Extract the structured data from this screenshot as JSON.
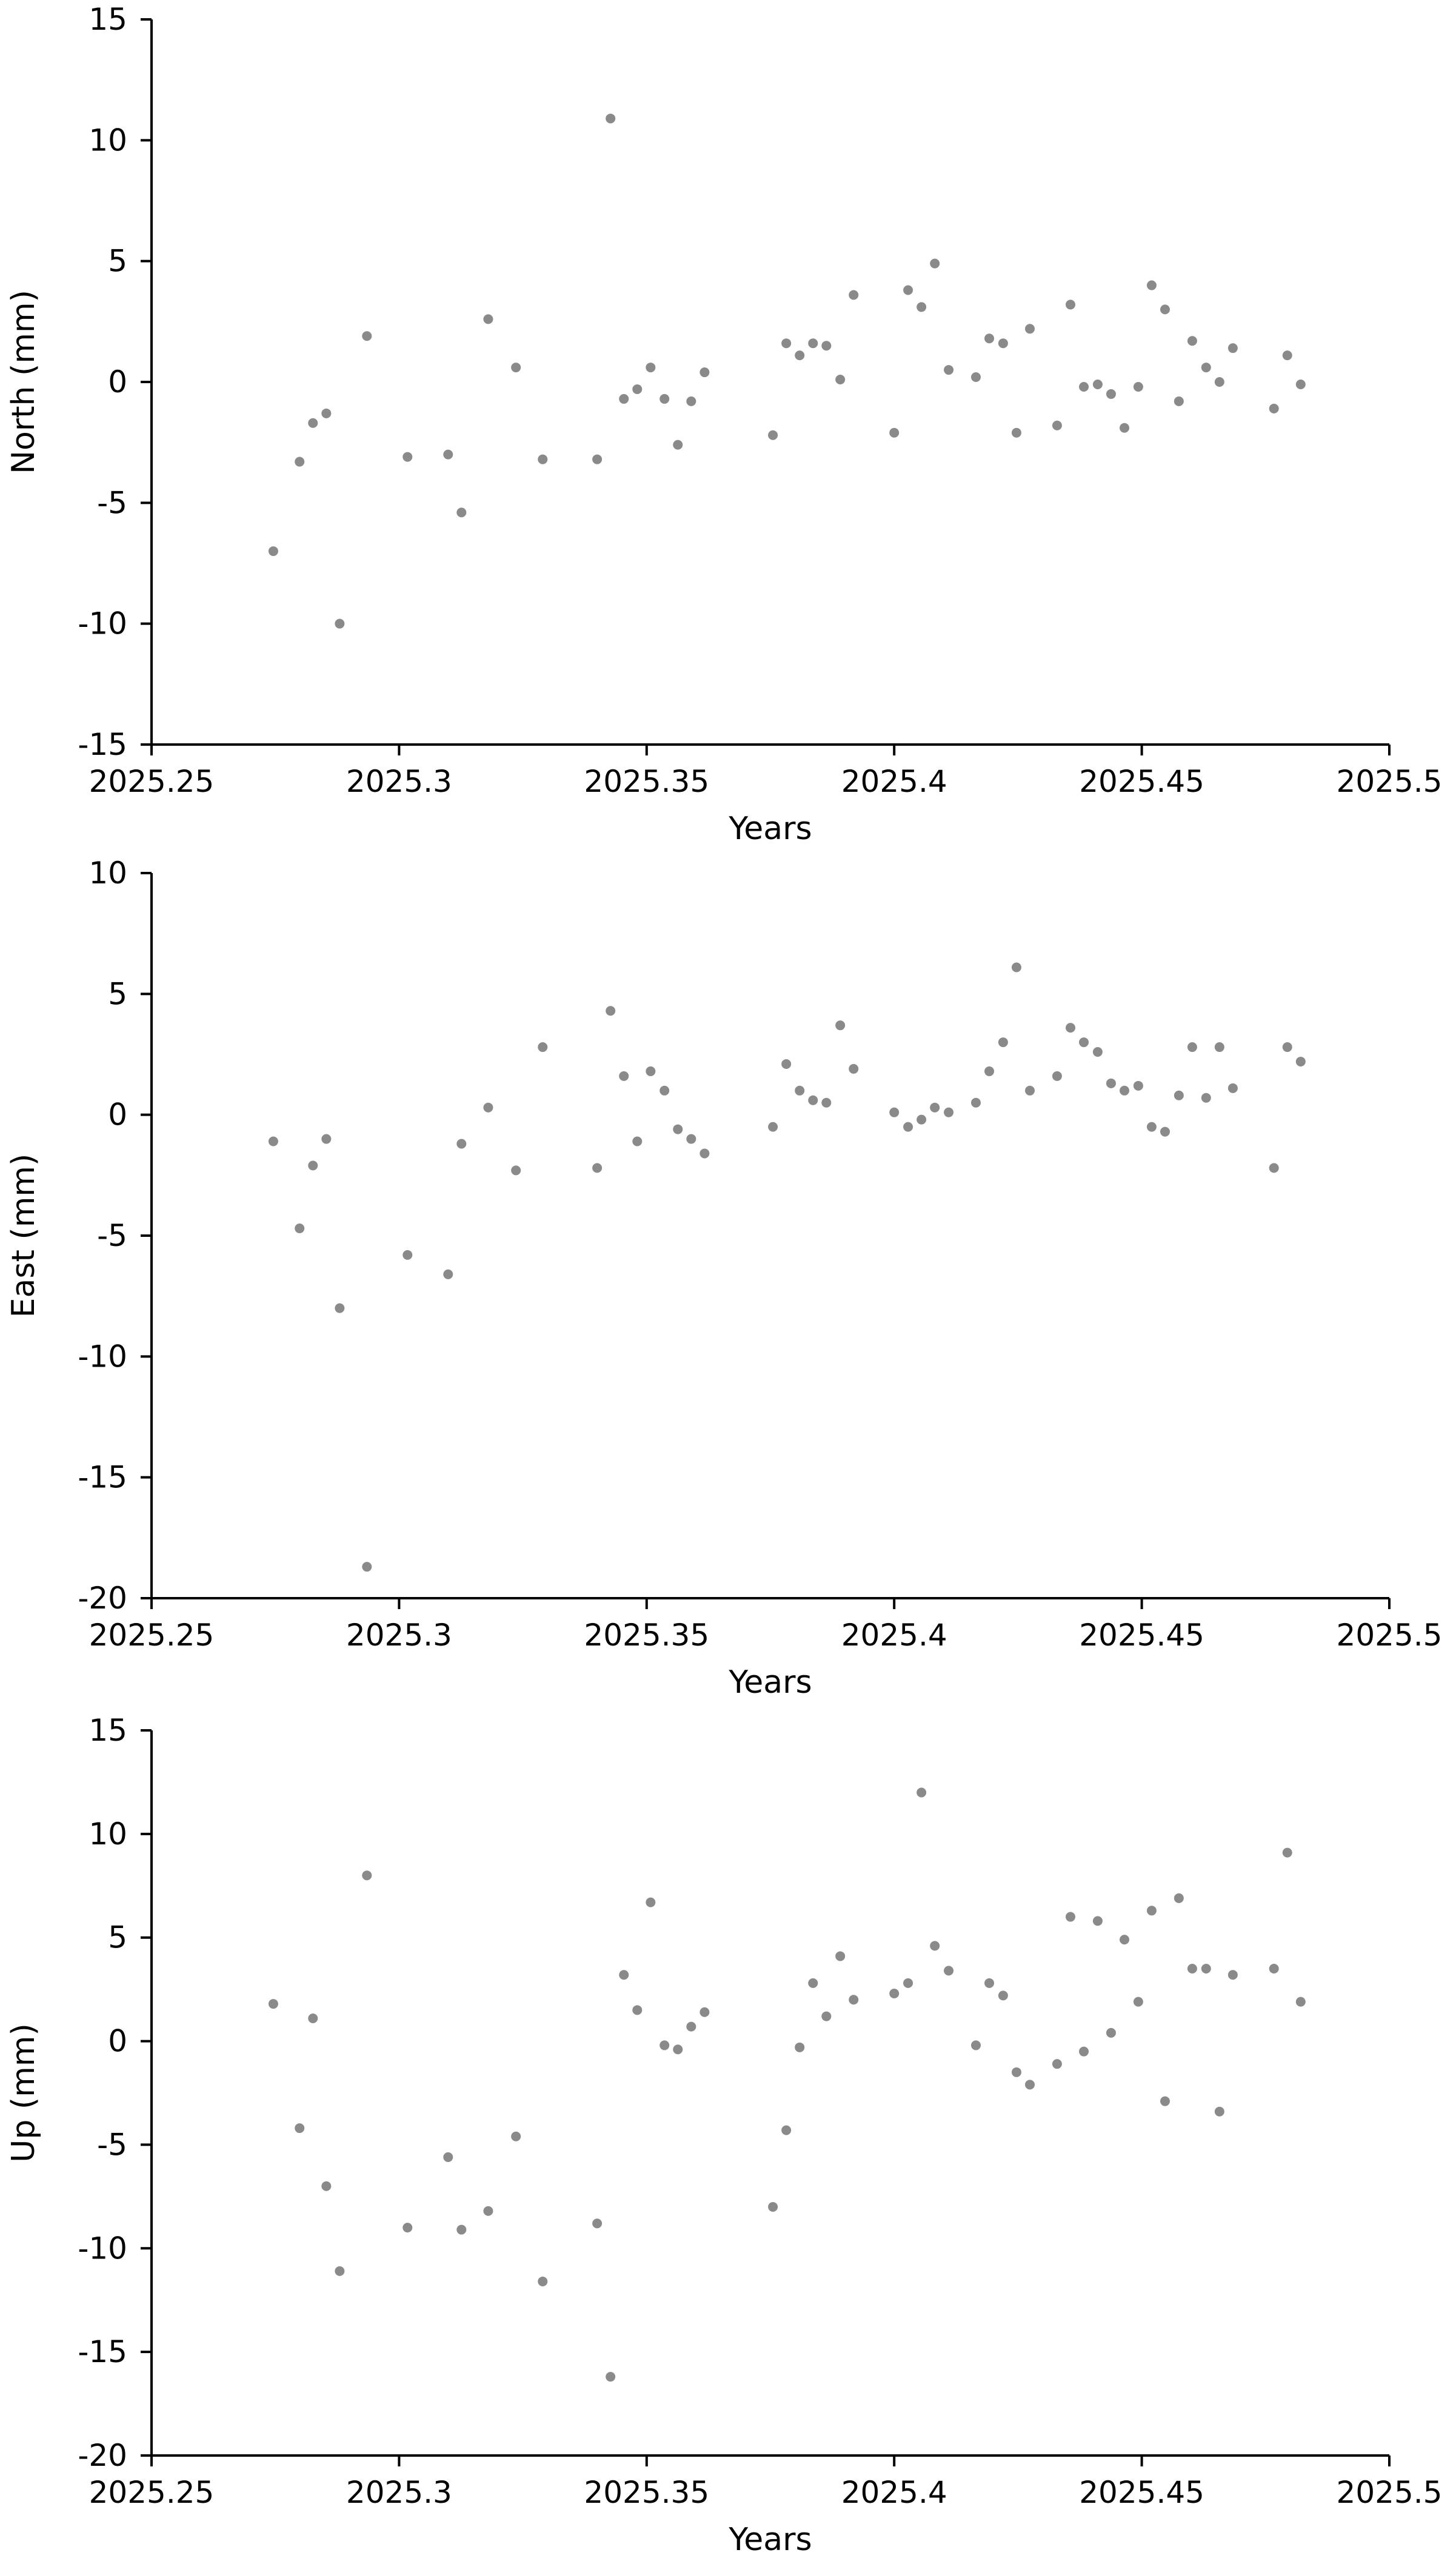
{
  "chart_data": [
    {
      "type": "scatter",
      "xlabel": "Years",
      "ylabel": "North (mm)",
      "xlim": [
        2025.25,
        2025.5
      ],
      "ylim": [
        -15,
        15
      ],
      "x_ticks": [
        "2025.25",
        "2025.3",
        "2025.35",
        "2025.4",
        "2025.45",
        "2025.5"
      ],
      "y_ticks": [
        "15",
        "10",
        "5",
        "0",
        "-5",
        "-10",
        "-15"
      ],
      "grid": false,
      "color": "#8a8a8a",
      "points": [
        [
          2025.2746,
          -7.0
        ],
        [
          2025.2799,
          -3.3
        ],
        [
          2025.2826,
          -1.7
        ],
        [
          2025.2853,
          -1.3
        ],
        [
          2025.288,
          -10.0
        ],
        [
          2025.2935,
          1.9
        ],
        [
          2025.3017,
          -3.1
        ],
        [
          2025.3099,
          -3.0
        ],
        [
          2025.3126,
          -5.4
        ],
        [
          2025.318,
          2.6
        ],
        [
          2025.3236,
          0.6
        ],
        [
          2025.329,
          -3.2
        ],
        [
          2025.34,
          -3.2
        ],
        [
          2025.3427,
          10.9
        ],
        [
          2025.3454,
          -0.7
        ],
        [
          2025.3481,
          -0.3
        ],
        [
          2025.3508,
          0.6
        ],
        [
          2025.3536,
          -0.7
        ],
        [
          2025.3563,
          -2.6
        ],
        [
          2025.359,
          -0.8
        ],
        [
          2025.3617,
          0.4
        ],
        [
          2025.3755,
          -2.2
        ],
        [
          2025.3782,
          1.6
        ],
        [
          2025.3809,
          1.1
        ],
        [
          2025.3836,
          1.6
        ],
        [
          2025.3863,
          1.5
        ],
        [
          2025.3891,
          0.1
        ],
        [
          2025.3918,
          3.6
        ],
        [
          2025.4,
          -2.1
        ],
        [
          2025.4028,
          3.8
        ],
        [
          2025.4055,
          3.1
        ],
        [
          2025.4082,
          4.9
        ],
        [
          2025.411,
          0.5
        ],
        [
          2025.4165,
          0.2
        ],
        [
          2025.4192,
          1.8
        ],
        [
          2025.422,
          1.6
        ],
        [
          2025.4247,
          -2.1
        ],
        [
          2025.4274,
          2.2
        ],
        [
          2025.4329,
          -1.8
        ],
        [
          2025.4356,
          3.2
        ],
        [
          2025.4383,
          -0.2
        ],
        [
          2025.4411,
          -0.1
        ],
        [
          2025.4438,
          -0.5
        ],
        [
          2025.4465,
          -1.9
        ],
        [
          2025.4493,
          -0.2
        ],
        [
          2025.452,
          4.0
        ],
        [
          2025.4547,
          3.0
        ],
        [
          2025.4575,
          -0.8
        ],
        [
          2025.4602,
          1.7
        ],
        [
          2025.463,
          0.6
        ],
        [
          2025.4657,
          0.0
        ],
        [
          2025.4684,
          1.4
        ],
        [
          2025.4767,
          -1.1
        ],
        [
          2025.4794,
          1.1
        ],
        [
          2025.4821,
          -0.1
        ]
      ]
    },
    {
      "type": "scatter",
      "xlabel": "Years",
      "ylabel": "East (mm)",
      "xlim": [
        2025.25,
        2025.5
      ],
      "ylim": [
        -20,
        10
      ],
      "x_ticks": [
        "2025.25",
        "2025.3",
        "2025.35",
        "2025.4",
        "2025.45",
        "2025.5"
      ],
      "y_ticks": [
        "10",
        "5",
        "0",
        "-5",
        "-10",
        "-15",
        "-20"
      ],
      "grid": false,
      "color": "#8a8a8a",
      "points": [
        [
          2025.2746,
          -1.1
        ],
        [
          2025.2799,
          -4.7
        ],
        [
          2025.2826,
          -2.1
        ],
        [
          2025.2853,
          -1.0
        ],
        [
          2025.288,
          -8.0
        ],
        [
          2025.2935,
          -18.7
        ],
        [
          2025.3017,
          -5.8
        ],
        [
          2025.3099,
          -6.6
        ],
        [
          2025.3126,
          -1.2
        ],
        [
          2025.318,
          0.3
        ],
        [
          2025.3236,
          -2.3
        ],
        [
          2025.329,
          2.8
        ],
        [
          2025.34,
          -2.2
        ],
        [
          2025.3427,
          4.3
        ],
        [
          2025.3454,
          1.6
        ],
        [
          2025.3481,
          -1.1
        ],
        [
          2025.3508,
          1.8
        ],
        [
          2025.3536,
          1.0
        ],
        [
          2025.3563,
          -0.6
        ],
        [
          2025.359,
          -1.0
        ],
        [
          2025.3617,
          -1.6
        ],
        [
          2025.3755,
          -0.5
        ],
        [
          2025.3782,
          2.1
        ],
        [
          2025.3809,
          1.0
        ],
        [
          2025.3836,
          0.6
        ],
        [
          2025.3863,
          0.5
        ],
        [
          2025.3891,
          3.7
        ],
        [
          2025.3918,
          1.9
        ],
        [
          2025.4,
          0.1
        ],
        [
          2025.4028,
          -0.5
        ],
        [
          2025.4055,
          -0.2
        ],
        [
          2025.4082,
          0.3
        ],
        [
          2025.411,
          0.1
        ],
        [
          2025.4165,
          0.5
        ],
        [
          2025.4192,
          1.8
        ],
        [
          2025.422,
          3.0
        ],
        [
          2025.4247,
          6.1
        ],
        [
          2025.4274,
          1.0
        ],
        [
          2025.4329,
          1.6
        ],
        [
          2025.4356,
          3.6
        ],
        [
          2025.4383,
          3.0
        ],
        [
          2025.4411,
          2.6
        ],
        [
          2025.4438,
          1.3
        ],
        [
          2025.4465,
          1.0
        ],
        [
          2025.4493,
          1.2
        ],
        [
          2025.452,
          -0.5
        ],
        [
          2025.4547,
          -0.7
        ],
        [
          2025.4575,
          0.8
        ],
        [
          2025.4602,
          2.8
        ],
        [
          2025.463,
          0.7
        ],
        [
          2025.4657,
          2.8
        ],
        [
          2025.4684,
          1.1
        ],
        [
          2025.4767,
          -2.2
        ],
        [
          2025.4794,
          2.8
        ],
        [
          2025.4821,
          2.2
        ]
      ]
    },
    {
      "type": "scatter",
      "xlabel": "Years",
      "ylabel": "Up (mm)",
      "xlim": [
        2025.25,
        2025.5
      ],
      "ylim": [
        -20,
        15
      ],
      "x_ticks": [
        "2025.25",
        "2025.3",
        "2025.35",
        "2025.4",
        "2025.45",
        "2025.5"
      ],
      "y_ticks": [
        "15",
        "10",
        "5",
        "0",
        "-5",
        "-10",
        "-15",
        "-20"
      ],
      "grid": false,
      "color": "#8a8a8a",
      "points": [
        [
          2025.2746,
          1.8
        ],
        [
          2025.2799,
          -4.2
        ],
        [
          2025.2826,
          1.1
        ],
        [
          2025.2853,
          -7.0
        ],
        [
          2025.288,
          -11.1
        ],
        [
          2025.2935,
          8.0
        ],
        [
          2025.3017,
          -9.0
        ],
        [
          2025.3099,
          -5.6
        ],
        [
          2025.3126,
          -9.1
        ],
        [
          2025.318,
          -8.2
        ],
        [
          2025.3236,
          -4.6
        ],
        [
          2025.329,
          -11.6
        ],
        [
          2025.34,
          -8.8
        ],
        [
          2025.3427,
          -16.2
        ],
        [
          2025.3454,
          3.2
        ],
        [
          2025.3481,
          1.5
        ],
        [
          2025.3508,
          6.7
        ],
        [
          2025.3536,
          -0.2
        ],
        [
          2025.3563,
          -0.4
        ],
        [
          2025.359,
          0.7
        ],
        [
          2025.3617,
          1.4
        ],
        [
          2025.3755,
          -8.0
        ],
        [
          2025.3782,
          -4.3
        ],
        [
          2025.3809,
          -0.3
        ],
        [
          2025.3836,
          2.8
        ],
        [
          2025.3863,
          1.2
        ],
        [
          2025.3891,
          4.1
        ],
        [
          2025.3918,
          2.0
        ],
        [
          2025.4,
          2.3
        ],
        [
          2025.4028,
          2.8
        ],
        [
          2025.4055,
          12.0
        ],
        [
          2025.4082,
          4.6
        ],
        [
          2025.411,
          3.4
        ],
        [
          2025.4165,
          -0.2
        ],
        [
          2025.4192,
          2.8
        ],
        [
          2025.422,
          2.2
        ],
        [
          2025.4247,
          -1.5
        ],
        [
          2025.4274,
          -2.1
        ],
        [
          2025.4329,
          -1.1
        ],
        [
          2025.4356,
          6.0
        ],
        [
          2025.4383,
          -0.5
        ],
        [
          2025.4411,
          5.8
        ],
        [
          2025.4438,
          0.4
        ],
        [
          2025.4465,
          4.9
        ],
        [
          2025.4493,
          1.9
        ],
        [
          2025.452,
          6.3
        ],
        [
          2025.4547,
          -2.9
        ],
        [
          2025.4575,
          6.9
        ],
        [
          2025.4602,
          3.5
        ],
        [
          2025.463,
          3.5
        ],
        [
          2025.4657,
          -3.4
        ],
        [
          2025.4684,
          3.2
        ],
        [
          2025.4767,
          3.5
        ],
        [
          2025.4794,
          9.1
        ],
        [
          2025.4821,
          1.9
        ]
      ]
    }
  ]
}
